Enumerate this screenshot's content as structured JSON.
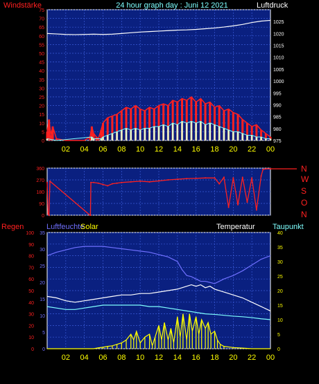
{
  "header": {
    "left_label": "Windstärke",
    "title": "24 hour graph day : Juni 12 2021",
    "right_label": "Luftdruck"
  },
  "colors": {
    "background": "#000000",
    "panel": "#0a2080",
    "grid": "#3a5ad8",
    "frame": "#ffffff",
    "left_axis_top": "#ff2020",
    "right_axis_top": "#ffffff",
    "direction_axis": "#ff2020",
    "x_axis": "#ffff00",
    "wind": "#ff2020",
    "gust": "#ffffff",
    "pressure": "#ffffff",
    "rain_label": "#ff2020",
    "humidity_label": "#7070ff",
    "solar_label": "#ffff00",
    "temperature_label": "#ffffff",
    "dewpoint_label": "#7fffff",
    "humidity": "#7070ff",
    "temperature": "#ffffff",
    "dewpoint": "#7fffff",
    "solar": "#ffff00",
    "rain_axis": "#ff2020",
    "humidity_axis": "#7070ff",
    "temperature_axis": "#ffff00"
  },
  "x_ticks": [
    "02",
    "04",
    "06",
    "08",
    "10",
    "12",
    "14",
    "16",
    "18",
    "20",
    "22",
    "00"
  ],
  "direction_labels": [
    "N",
    "W",
    "S",
    "O",
    "N"
  ],
  "bottom_labels": {
    "rain": "Regen",
    "humidity": "Luftfeuchte",
    "solar": "Solar",
    "temperature": "Temperatur",
    "dewpoint": "Taupunkt"
  },
  "chart_data": [
    {
      "type": "line",
      "x_unit": "hour",
      "x_range": [
        0,
        24
      ],
      "left_axis": {
        "ylim": [
          0,
          75
        ],
        "ticks": [
          0,
          5,
          10,
          15,
          20,
          25,
          30,
          35,
          40,
          45,
          50,
          55,
          60,
          65,
          70,
          75
        ]
      },
      "right_axis": {
        "ylim": [
          975,
          1030
        ],
        "ticks": [
          975,
          980,
          985,
          990,
          995,
          1000,
          1005,
          1010,
          1015,
          1020,
          1025
        ]
      },
      "series": [
        {
          "name": "Luftdruck",
          "axis": "right",
          "x": [
            0,
            1,
            2,
            3,
            4,
            5,
            6,
            7,
            8,
            9,
            10,
            11,
            12,
            13,
            14,
            15,
            16,
            17,
            18,
            19,
            20,
            21,
            22,
            23,
            24
          ],
          "values": [
            1020,
            1019.8,
            1019.6,
            1019.5,
            1019.6,
            1019.7,
            1019.6,
            1019.7,
            1020,
            1020.3,
            1020.6,
            1020.8,
            1021,
            1021.2,
            1021.4,
            1021.5,
            1021.7,
            1022,
            1022.3,
            1022.7,
            1023.2,
            1023.8,
            1024.6,
            1025.2,
            1025.5
          ]
        },
        {
          "name": "wind",
          "axis": "left",
          "x": [
            0,
            0.2,
            0.4,
            0.6,
            1,
            2,
            3,
            4,
            4.6,
            4.8,
            5,
            5.3,
            5.5,
            5.8,
            6,
            6.5,
            7,
            7.5,
            8,
            8.5,
            9,
            9.5,
            10,
            10.5,
            11,
            11.5,
            12,
            12.5,
            13,
            13.5,
            14,
            14.5,
            15,
            15.5,
            16,
            16.5,
            17,
            17.5,
            18,
            18.5,
            19,
            19.5,
            20,
            20.5,
            21,
            21.5,
            22,
            22.5,
            23,
            23.5,
            24
          ],
          "values": [
            5,
            12,
            3,
            8,
            1,
            0,
            0,
            0,
            2,
            8,
            4,
            2,
            1,
            6,
            10,
            13,
            14,
            15,
            17,
            19,
            18,
            20,
            18,
            17,
            19,
            18,
            20,
            21,
            20,
            23,
            22,
            24,
            23,
            25,
            22,
            24,
            21,
            22,
            19,
            20,
            17,
            18,
            16,
            15,
            12,
            10,
            8,
            9,
            6,
            4,
            2
          ]
        },
        {
          "name": "gust",
          "axis": "left",
          "x": [
            0,
            1,
            4.8,
            5,
            5.8,
            6,
            6.5,
            7,
            7.5,
            8,
            8.5,
            9,
            9.5,
            10,
            10.5,
            11,
            11.5,
            12,
            12.5,
            13,
            13.5,
            14,
            14.5,
            15,
            15.5,
            16,
            16.5,
            17,
            17.5,
            18,
            18.5,
            19,
            19.5,
            20,
            20.5,
            21,
            21.5,
            22,
            22.5,
            23,
            23.5,
            24
          ],
          "values": [
            1,
            0,
            2,
            1,
            1,
            2,
            3,
            4,
            5,
            6,
            7,
            6,
            7,
            6,
            7,
            7,
            8,
            8,
            9,
            8,
            10,
            9,
            11,
            10,
            11,
            10,
            11,
            9,
            10,
            9,
            8,
            7,
            6,
            5,
            5,
            4,
            3,
            3,
            2,
            2,
            1,
            1
          ]
        }
      ]
    },
    {
      "type": "scatter",
      "x_unit": "hour",
      "x_range": [
        0,
        24
      ],
      "left_axis": {
        "ylim": [
          0,
          360
        ],
        "ticks": [
          0,
          90,
          180,
          270,
          360
        ]
      },
      "series": [
        {
          "name": "direction",
          "x": [
            0,
            0.1,
            0.2,
            0.3,
            4.6,
            4.65,
            4.7,
            5,
            5.5,
            6,
            6.5,
            7,
            7.5,
            8,
            9,
            10,
            11,
            12,
            13,
            14,
            15,
            16,
            17,
            18,
            18.5,
            19,
            19.5,
            20,
            20.5,
            21,
            21.5,
            22,
            22.5,
            23,
            23.2,
            23.5,
            24
          ],
          "values": [
            250,
            10,
            0,
            260,
            0,
            0,
            250,
            250,
            245,
            235,
            225,
            240,
            245,
            250,
            255,
            260,
            255,
            262,
            270,
            275,
            280,
            282,
            285,
            285,
            240,
            290,
            60,
            285,
            80,
            290,
            100,
            285,
            40,
            300,
            350,
            355,
            355
          ]
        }
      ]
    },
    {
      "type": "line",
      "x_unit": "hour",
      "x_range": [
        0,
        24
      ],
      "left_axis": {
        "ylim": [
          0,
          100
        ],
        "ticks": [
          0,
          10,
          20,
          30,
          40,
          50,
          60,
          70,
          80,
          90,
          100
        ]
      },
      "humidity_axis": {
        "ylim": [
          0,
          35
        ],
        "ticks": [
          0,
          5,
          10,
          15,
          20,
          25,
          30,
          35
        ]
      },
      "right_axis": {
        "ylim": [
          0,
          40
        ],
        "ticks": [
          0,
          5,
          10,
          15,
          20,
          25,
          30,
          35,
          40
        ]
      },
      "series": [
        {
          "name": "Luftfeuchte",
          "axis": "left",
          "x": [
            0,
            1,
            2,
            3,
            4,
            5,
            6,
            7,
            8,
            9,
            10,
            11,
            12,
            13,
            14,
            14.5,
            15,
            15.5,
            16,
            16.5,
            17,
            17.5,
            18,
            18.5,
            19,
            20,
            21,
            22,
            23,
            24
          ],
          "values": [
            80,
            83,
            85,
            87,
            88,
            88,
            88,
            87,
            86,
            85,
            84,
            83,
            81,
            79,
            75,
            68,
            63,
            62,
            60,
            58,
            58,
            57,
            56,
            58,
            60,
            63,
            67,
            72,
            77,
            80
          ]
        },
        {
          "name": "Temperatur",
          "axis": "right",
          "x": [
            0,
            1,
            2,
            3,
            4,
            5,
            6,
            7,
            8,
            9,
            10,
            11,
            12,
            13,
            14,
            15,
            15.5,
            16,
            16.5,
            17,
            17.5,
            18,
            19,
            20,
            21,
            22,
            23,
            24
          ],
          "values": [
            18,
            17.5,
            16.5,
            16,
            16.5,
            17,
            17.5,
            18,
            18.5,
            18.5,
            19,
            19,
            19.5,
            20,
            20.5,
            21.5,
            22,
            21.5,
            22,
            21,
            21.5,
            20.5,
            19.5,
            18.5,
            17.5,
            16,
            14.5,
            13
          ]
        },
        {
          "name": "Taupunkt",
          "axis": "right",
          "x": [
            0,
            1,
            2,
            3,
            4,
            5,
            6,
            7,
            8,
            9,
            10,
            11,
            12,
            13,
            14,
            15,
            16,
            17,
            18,
            19,
            20,
            21,
            22,
            23,
            24
          ],
          "values": [
            14.5,
            14,
            13.5,
            13.5,
            14,
            14.5,
            15,
            15,
            15,
            15,
            15,
            14.5,
            14.5,
            14,
            13.5,
            13,
            12.5,
            12,
            11.8,
            11.5,
            11.2,
            11,
            10.7,
            10.3,
            10
          ]
        },
        {
          "name": "Solar",
          "axis": "right",
          "x": [
            0,
            5,
            5.5,
            6,
            6.5,
            7,
            7.5,
            8,
            8.5,
            9,
            9.3,
            9.6,
            10,
            10.5,
            11,
            11.3,
            11.6,
            12,
            12.3,
            12.6,
            13,
            13.3,
            13.6,
            14,
            14.3,
            14.6,
            15,
            15.3,
            15.6,
            16,
            16.3,
            16.6,
            17,
            17.3,
            17.6,
            18,
            18.3,
            18.6,
            19,
            20,
            21,
            22,
            24
          ],
          "values": [
            0,
            0,
            0.3,
            0.5,
            0.8,
            1,
            1.5,
            2,
            3,
            5,
            3,
            6,
            2,
            4,
            5,
            1,
            4,
            8,
            3,
            9,
            3,
            7,
            2,
            11,
            4,
            12,
            3,
            12,
            6,
            11,
            5,
            10,
            7,
            9,
            5,
            6,
            3,
            1.5,
            0.8,
            0.4,
            0.2,
            0,
            0
          ]
        }
      ]
    }
  ]
}
